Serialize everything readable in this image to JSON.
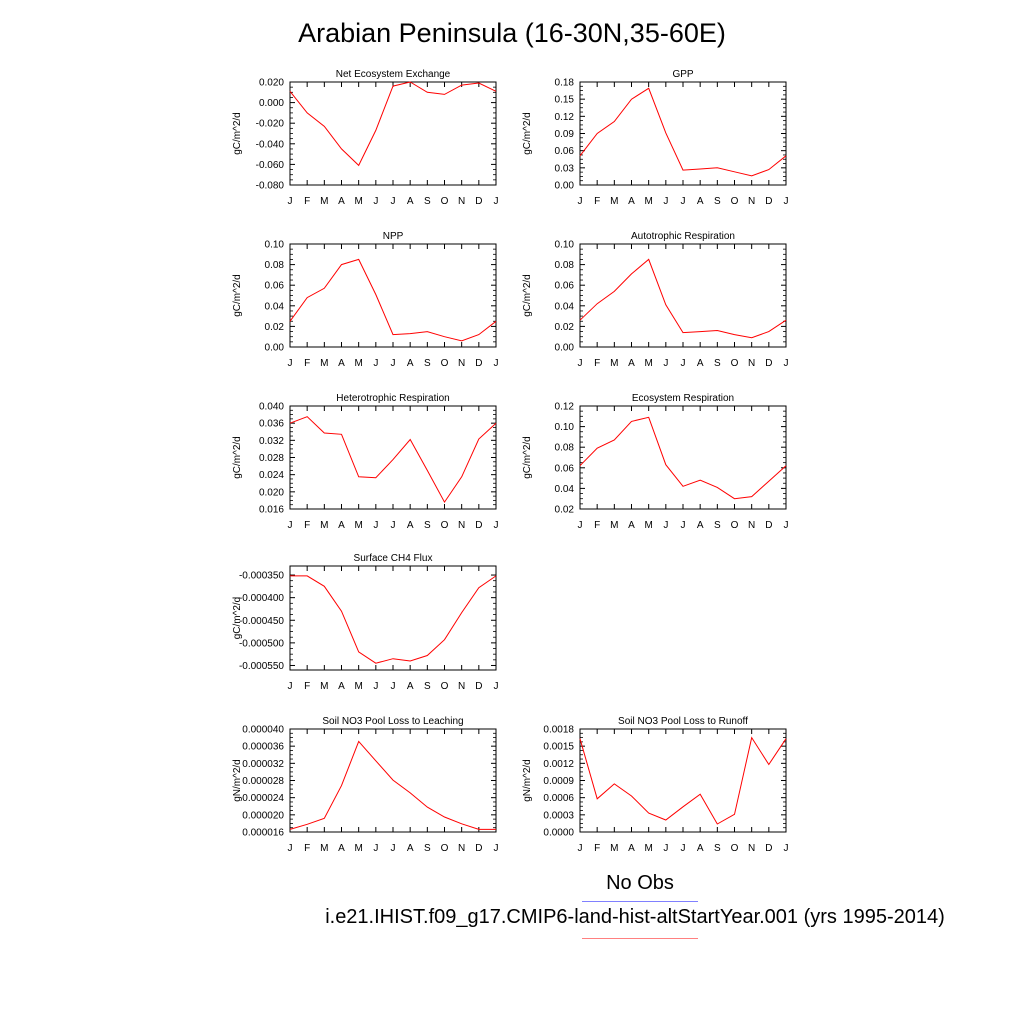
{
  "title": "Arabian Peninsula (16-30N,35-60E)",
  "legend": {
    "obs_label": "No Obs",
    "obs_color": "#8080ff",
    "case_label": "i.e21.IHIST.f09_g17.CMIP6-land-hist-altStartYear.001 (yrs 1995-2014)",
    "case_color": "#ff8080"
  },
  "line_color": "#ff0000",
  "chart_data": [
    {
      "type": "line",
      "title": "Net Ecosystem Exchange",
      "ylabel": "gC/m^2/d",
      "x": [
        "J",
        "F",
        "M",
        "A",
        "M",
        "J",
        "J",
        "A",
        "S",
        "O",
        "N",
        "D",
        "J"
      ],
      "ylim": [
        -0.08,
        0.02
      ],
      "yticks": [
        "0.020",
        "0.000",
        "-0.020",
        "-0.040",
        "-0.060",
        "-0.080"
      ],
      "yticks_values": [
        0.02,
        0.0,
        -0.02,
        -0.04,
        -0.06,
        -0.08
      ],
      "values": [
        0.011,
        -0.01,
        -0.023,
        -0.045,
        -0.061,
        -0.027,
        0.016,
        0.02,
        0.01,
        0.008,
        0.017,
        0.019,
        0.011
      ]
    },
    {
      "type": "line",
      "title": "GPP",
      "ylabel": "gC/m^2/d",
      "x": [
        "J",
        "F",
        "M",
        "A",
        "M",
        "J",
        "J",
        "A",
        "S",
        "O",
        "N",
        "D",
        "J"
      ],
      "ylim": [
        0,
        0.18
      ],
      "yticks": [
        "0.18",
        "0.15",
        "0.12",
        "0.09",
        "0.06",
        "0.03",
        "0.00"
      ],
      "yticks_values": [
        0.18,
        0.15,
        0.12,
        0.09,
        0.06,
        0.03,
        0.0
      ],
      "values": [
        0.051,
        0.09,
        0.111,
        0.15,
        0.169,
        0.091,
        0.026,
        0.028,
        0.03,
        0.023,
        0.016,
        0.027,
        0.051
      ]
    },
    {
      "type": "line",
      "title": "NPP",
      "ylabel": "gC/m^2/d",
      "x": [
        "J",
        "F",
        "M",
        "A",
        "M",
        "J",
        "J",
        "A",
        "S",
        "O",
        "N",
        "D",
        "J"
      ],
      "ylim": [
        0,
        0.1
      ],
      "yticks": [
        "0.10",
        "0.08",
        "0.06",
        "0.04",
        "0.02",
        "0.00"
      ],
      "yticks_values": [
        0.1,
        0.08,
        0.06,
        0.04,
        0.02,
        0.0
      ],
      "values": [
        0.025,
        0.048,
        0.057,
        0.08,
        0.085,
        0.051,
        0.012,
        0.013,
        0.015,
        0.01,
        0.006,
        0.012,
        0.025
      ]
    },
    {
      "type": "line",
      "title": "Autotrophic Respiration",
      "ylabel": "gC/m^2/d",
      "x": [
        "J",
        "F",
        "M",
        "A",
        "M",
        "J",
        "J",
        "A",
        "S",
        "O",
        "N",
        "D",
        "J"
      ],
      "ylim": [
        0,
        0.1
      ],
      "yticks": [
        "0.10",
        "0.08",
        "0.06",
        "0.04",
        "0.02",
        "0.00"
      ],
      "yticks_values": [
        0.1,
        0.08,
        0.06,
        0.04,
        0.02,
        0.0
      ],
      "values": [
        0.026,
        0.042,
        0.054,
        0.071,
        0.085,
        0.041,
        0.014,
        0.015,
        0.016,
        0.012,
        0.009,
        0.015,
        0.026
      ]
    },
    {
      "type": "line",
      "title": "Heterotrophic Respiration",
      "ylabel": "gC/m^2/d",
      "x": [
        "J",
        "F",
        "M",
        "A",
        "M",
        "J",
        "J",
        "A",
        "S",
        "O",
        "N",
        "D",
        "J"
      ],
      "ylim": [
        0.016,
        0.04
      ],
      "yticks": [
        "0.040",
        "0.036",
        "0.032",
        "0.028",
        "0.024",
        "0.020",
        "0.016"
      ],
      "yticks_values": [
        0.04,
        0.036,
        0.032,
        0.028,
        0.024,
        0.02,
        0.016
      ],
      "values": [
        0.036,
        0.0375,
        0.0337,
        0.0334,
        0.0235,
        0.0233,
        0.0275,
        0.0322,
        0.025,
        0.0176,
        0.0235,
        0.0323,
        0.036
      ]
    },
    {
      "type": "line",
      "title": "Ecosystem Respiration",
      "ylabel": "gC/m^2/d",
      "x": [
        "J",
        "F",
        "M",
        "A",
        "M",
        "J",
        "J",
        "A",
        "S",
        "O",
        "N",
        "D",
        "J"
      ],
      "ylim": [
        0.02,
        0.12
      ],
      "yticks": [
        "0.12",
        "0.10",
        "0.08",
        "0.06",
        "0.04",
        "0.02"
      ],
      "yticks_values": [
        0.12,
        0.1,
        0.08,
        0.06,
        0.04,
        0.02
      ],
      "values": [
        0.062,
        0.079,
        0.087,
        0.105,
        0.109,
        0.063,
        0.042,
        0.048,
        0.041,
        0.03,
        0.032,
        0.047,
        0.062
      ]
    },
    {
      "type": "line",
      "title": "Surface CH4 Flux",
      "ylabel": "gC/m^2/d",
      "x": [
        "J",
        "F",
        "M",
        "A",
        "M",
        "J",
        "J",
        "A",
        "S",
        "O",
        "N",
        "D",
        "J"
      ],
      "ylim": [
        -0.00056,
        -0.00033
      ],
      "yticks": [
        "-0.000350",
        "-0.000400",
        "-0.000450",
        "-0.000500",
        "-0.000550"
      ],
      "yticks_values": [
        -0.00035,
        -0.0004,
        -0.00045,
        -0.0005,
        -0.00055
      ],
      "values": [
        -0.000352,
        -0.000352,
        -0.000375,
        -0.00043,
        -0.00052,
        -0.000545,
        -0.000535,
        -0.00054,
        -0.000528,
        -0.000493,
        -0.000433,
        -0.000378,
        -0.000352
      ]
    },
    {
      "type": "line",
      "title": "Soil NO3 Pool Loss to Leaching",
      "ylabel": "gN/m^2/d",
      "x": [
        "J",
        "F",
        "M",
        "A",
        "M",
        "J",
        "J",
        "A",
        "S",
        "O",
        "N",
        "D",
        "J"
      ],
      "ylim": [
        1.6e-05,
        4e-05
      ],
      "yticks": [
        "0.000040",
        "0.000036",
        "0.000032",
        "0.000028",
        "0.000024",
        "0.000020",
        "0.000016"
      ],
      "yticks_values": [
        4e-05,
        3.6e-05,
        3.2e-05,
        2.8e-05,
        2.4e-05,
        2e-05,
        1.6e-05
      ],
      "values": [
        1.66e-05,
        1.78e-05,
        1.92e-05,
        2.68e-05,
        3.71e-05,
        3.26e-05,
        2.81e-05,
        2.51e-05,
        2.18e-05,
        1.95e-05,
        1.79e-05,
        1.66e-05,
        1.66e-05
      ]
    },
    {
      "type": "line",
      "title": "Soil NO3 Pool Loss to Runoff",
      "ylabel": "gN/m^2/d",
      "x": [
        "J",
        "F",
        "M",
        "A",
        "M",
        "J",
        "J",
        "A",
        "S",
        "O",
        "N",
        "D",
        "J"
      ],
      "ylim": [
        0,
        0.0018
      ],
      "yticks": [
        "0.0018",
        "0.0015",
        "0.0012",
        "0.0009",
        "0.0006",
        "0.0003",
        "0.0000"
      ],
      "yticks_values": [
        0.0018,
        0.0015,
        0.0012,
        0.0009,
        0.0006,
        0.0003,
        0.0
      ],
      "values": [
        0.00163,
        0.00058,
        0.00084,
        0.00063,
        0.00033,
        0.00021,
        0.00044,
        0.00066,
        0.00014,
        0.00031,
        0.00165,
        0.00118,
        0.00163
      ]
    }
  ]
}
